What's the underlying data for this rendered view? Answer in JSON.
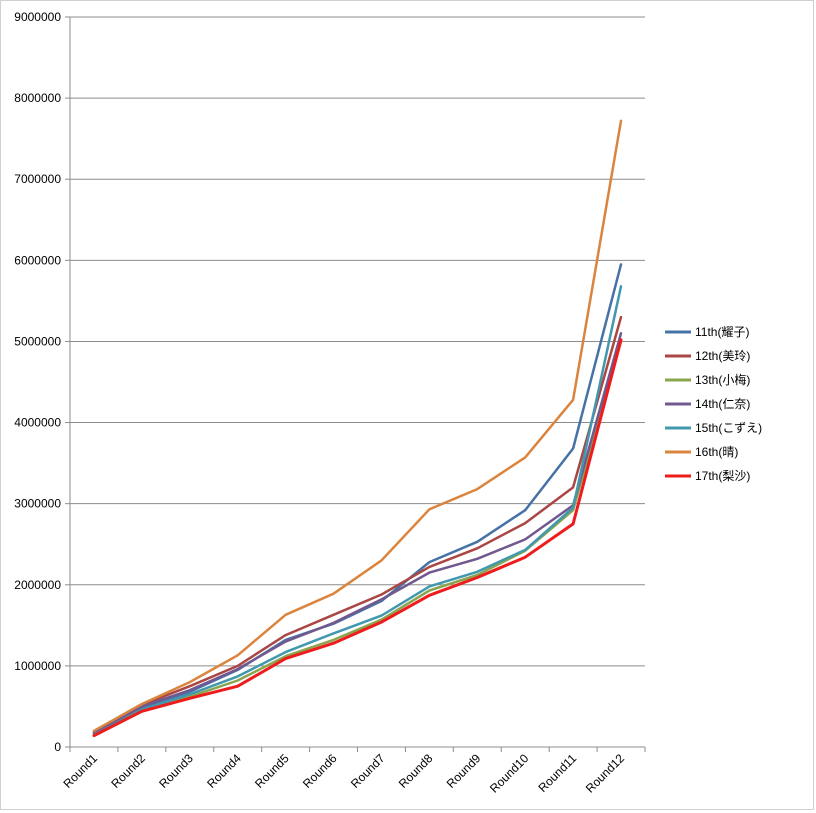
{
  "chart_data": {
    "type": "line",
    "title": "",
    "xlabel": "",
    "ylabel": "",
    "ylim": [
      0,
      9000000
    ],
    "yticks": [
      0,
      1000000,
      2000000,
      3000000,
      4000000,
      5000000,
      6000000,
      7000000,
      8000000,
      9000000
    ],
    "ytick_labels": [
      "0",
      "1000000",
      "2000000",
      "3000000",
      "4000000",
      "5000000",
      "6000000",
      "7000000",
      "8000000",
      "9000000"
    ],
    "grid": true,
    "legend_position": "right",
    "categories": [
      "Round1",
      "Round2",
      "Round3",
      "Round4",
      "Round5",
      "Round6",
      "Round7",
      "Round8",
      "Round9",
      "Round10",
      "Round11",
      "Round12"
    ],
    "series": [
      {
        "name": "11th(耀子)",
        "color": "#4572a7",
        "values": [
          180000,
          490000,
          680000,
          950000,
          1320000,
          1520000,
          1800000,
          2280000,
          2530000,
          2920000,
          3680000,
          5950000
        ]
      },
      {
        "name": "12th(美玲)",
        "color": "#aa4643",
        "values": [
          190000,
          520000,
          750000,
          1000000,
          1380000,
          1630000,
          1880000,
          2220000,
          2450000,
          2760000,
          3200000,
          5300000
        ]
      },
      {
        "name": "13th(小梅)",
        "color": "#89a54e",
        "values": [
          160000,
          460000,
          620000,
          820000,
          1120000,
          1320000,
          1570000,
          1930000,
          2120000,
          2420000,
          2920000,
          5000000
        ]
      },
      {
        "name": "14th(仁奈)",
        "color": "#71588f",
        "values": [
          175000,
          500000,
          700000,
          960000,
          1300000,
          1530000,
          1820000,
          2150000,
          2320000,
          2560000,
          2980000,
          5100000
        ]
      },
      {
        "name": "15th(こずえ)",
        "color": "#4198af",
        "values": [
          150000,
          460000,
          650000,
          870000,
          1170000,
          1400000,
          1620000,
          1980000,
          2160000,
          2430000,
          2950000,
          5680000
        ]
      },
      {
        "name": "16th(晴)",
        "color": "#db843d",
        "values": [
          200000,
          530000,
          800000,
          1130000,
          1630000,
          1890000,
          2300000,
          2930000,
          3180000,
          3570000,
          4280000,
          7720000
        ]
      },
      {
        "name": "17th(梨沙)",
        "color": "#ee1c1c",
        "values": [
          140000,
          440000,
          600000,
          750000,
          1090000,
          1280000,
          1540000,
          1870000,
          2090000,
          2340000,
          2750000,
          5020000
        ]
      }
    ]
  }
}
